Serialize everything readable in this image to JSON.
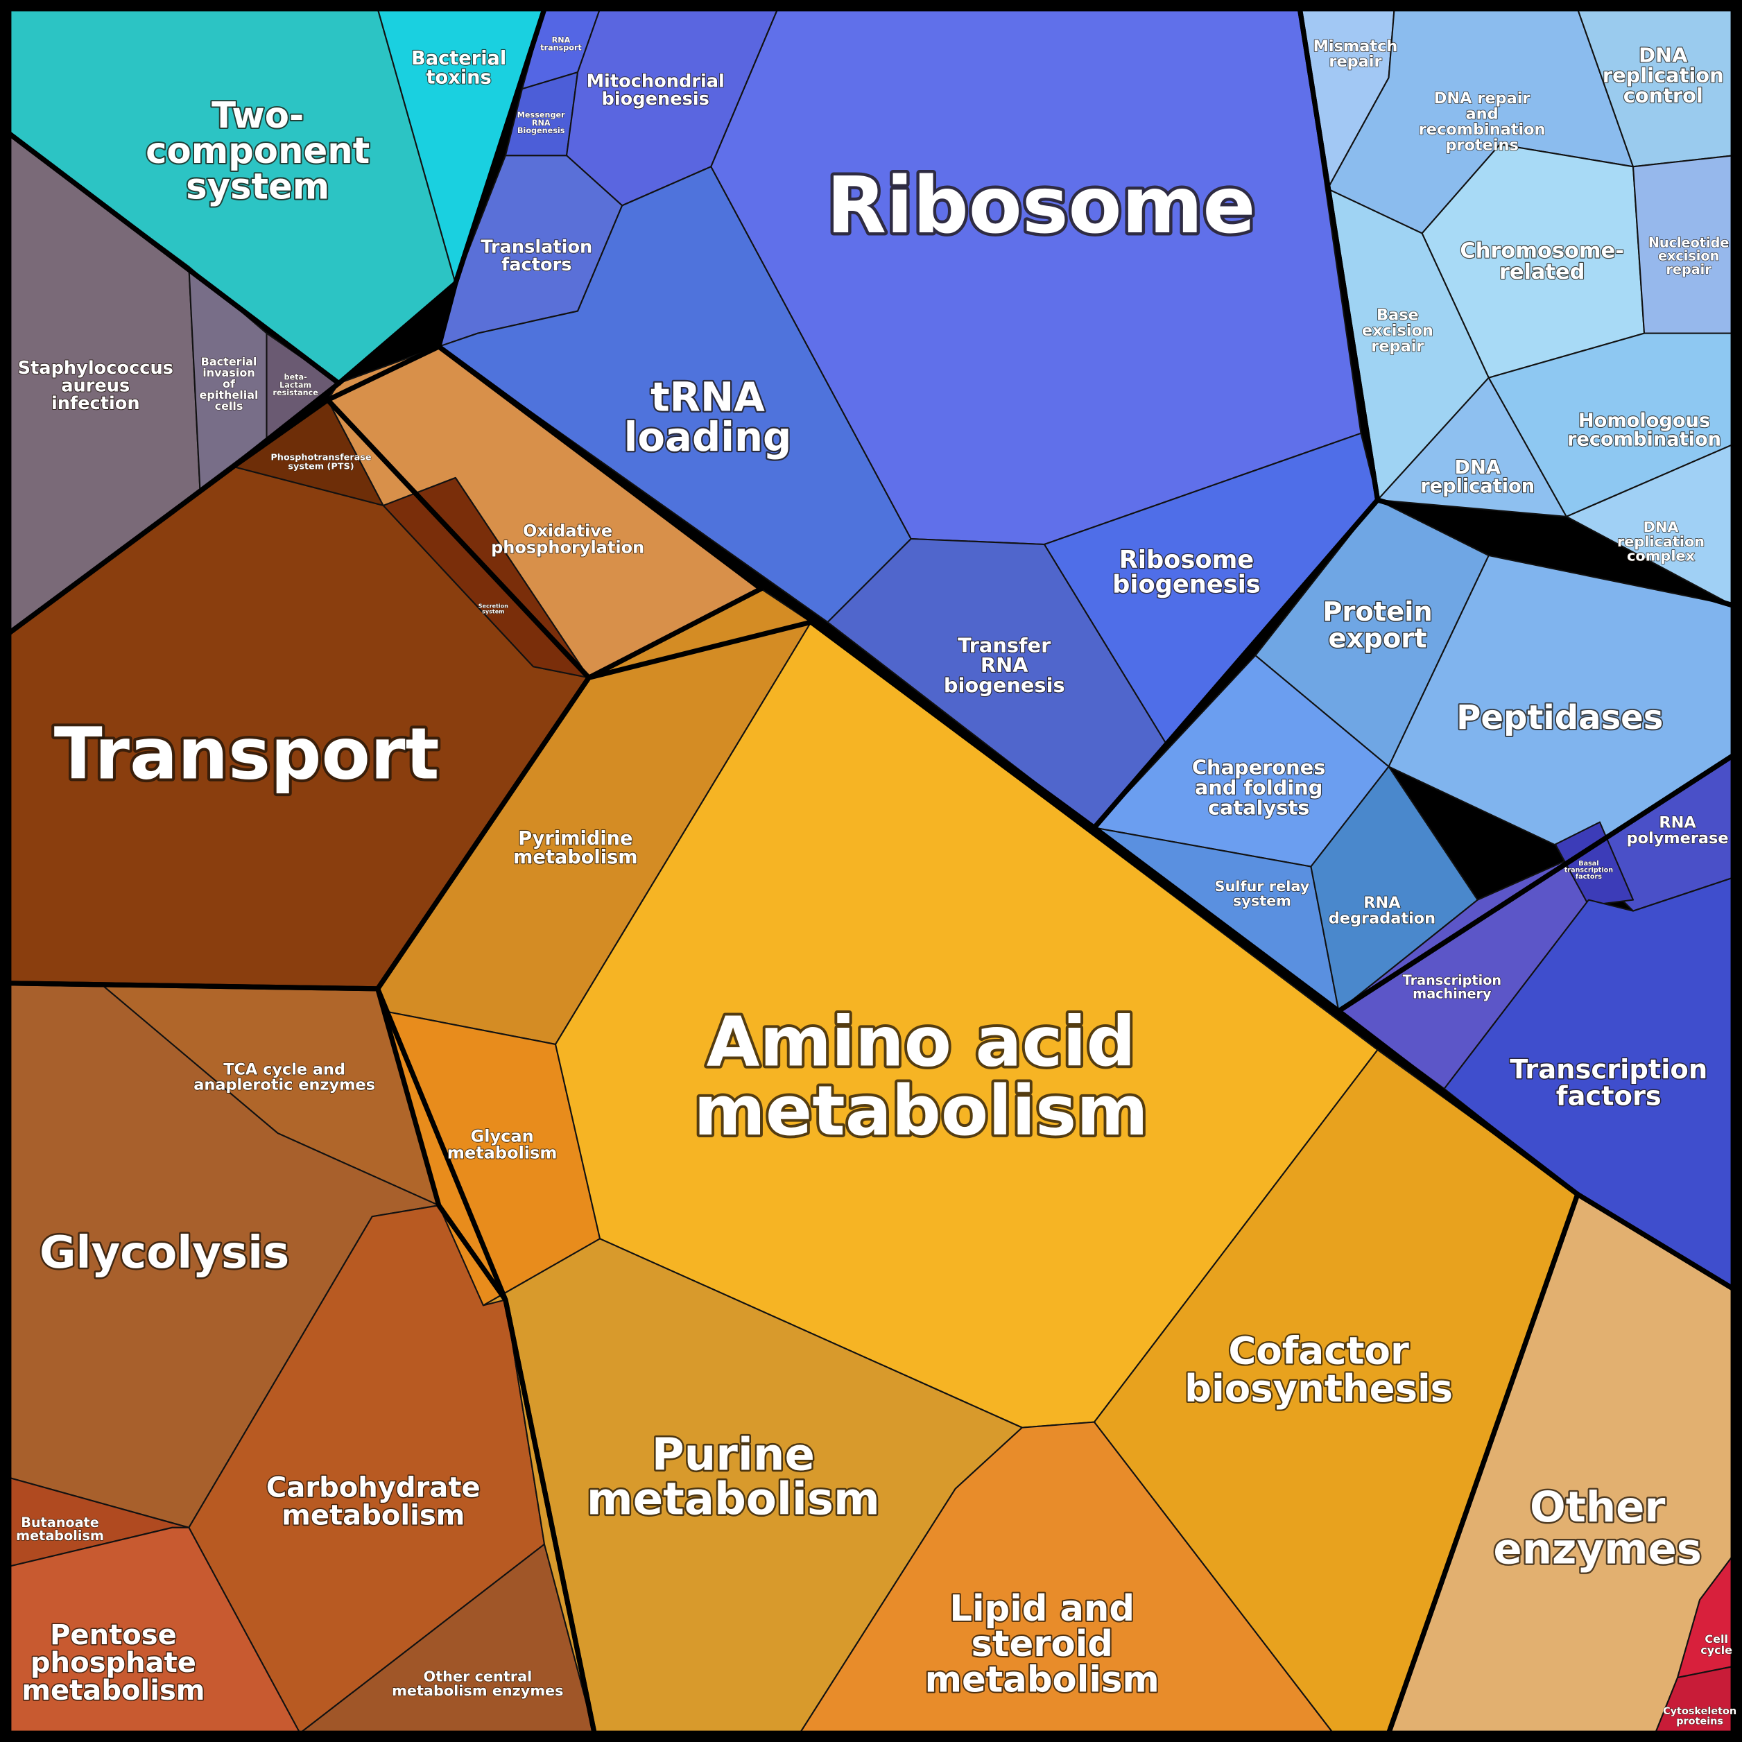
{
  "regions": [
    {
      "lines": [
        "Two-",
        "component",
        "system"
      ]
    },
    {
      "lines": [
        "Bacterial",
        "toxins"
      ]
    },
    {
      "lines": [
        "RNA",
        "transport"
      ]
    },
    {
      "lines": [
        "Messenger",
        "RNA",
        "Biogenesis"
      ]
    },
    {
      "lines": [
        "Mitochondrial",
        "biogenesis"
      ]
    },
    {
      "lines": [
        "Translation",
        "factors"
      ]
    },
    {
      "lines": [
        "Ribosome"
      ]
    },
    {
      "lines": [
        "tRNA",
        "loading"
      ]
    },
    {
      "lines": [
        "Ribosome",
        "biogenesis"
      ]
    },
    {
      "lines": [
        "Transfer",
        "RNA",
        "biogenesis"
      ]
    },
    {
      "lines": [
        "Mismatch",
        "repair"
      ]
    },
    {
      "lines": [
        "DNA repair",
        "and",
        "recombination",
        "proteins"
      ]
    },
    {
      "lines": [
        "DNA",
        "replication",
        "control"
      ]
    },
    {
      "lines": [
        "Chromosome-",
        "related"
      ]
    },
    {
      "lines": [
        "Nucleotide",
        "excision",
        "repair"
      ]
    },
    {
      "lines": [
        "Base",
        "excision",
        "repair"
      ]
    },
    {
      "lines": [
        "Homologous",
        "recombination"
      ]
    },
    {
      "lines": [
        "DNA",
        "replication"
      ]
    },
    {
      "lines": [
        "DNA",
        "replication",
        "complex"
      ]
    },
    {
      "lines": [
        "Protein",
        "export"
      ]
    },
    {
      "lines": [
        "Peptidases"
      ]
    },
    {
      "lines": [
        "Chaperones",
        "and folding",
        "catalysts"
      ]
    },
    {
      "lines": [
        "RNA",
        "polymerase"
      ]
    },
    {
      "lines": [
        "Basal",
        "transcription",
        "factors"
      ]
    },
    {
      "lines": [
        "Sulfur relay",
        "system"
      ]
    },
    {
      "lines": [
        "RNA",
        "degradation"
      ]
    },
    {
      "lines": [
        "Transcription",
        "machinery"
      ]
    },
    {
      "lines": [
        "Transcription",
        "factors"
      ]
    },
    {
      "lines": [
        "Staphylococcus",
        "aureus",
        "infection"
      ]
    },
    {
      "lines": [
        "Bacterial",
        "invasion",
        "of",
        "epithelial",
        "cells"
      ]
    },
    {
      "lines": [
        "beta-",
        "Lactam",
        "resistance"
      ]
    },
    {
      "lines": [
        "Phosphotransferase",
        "system (PTS)"
      ]
    },
    {
      "lines": [
        "Secretion",
        "system"
      ]
    },
    {
      "lines": [
        "Oxidative",
        "phosphorylation"
      ]
    },
    {
      "lines": [
        "Transport"
      ]
    },
    {
      "lines": [
        "Pyrimidine",
        "metabolism"
      ]
    },
    {
      "lines": [
        "TCA cycle and",
        "anaplerotic enzymes"
      ]
    },
    {
      "lines": [
        "Glycan",
        "metabolism"
      ]
    },
    {
      "lines": [
        "Amino acid",
        "metabolism"
      ]
    },
    {
      "lines": [
        "Glycolysis"
      ]
    },
    {
      "lines": [
        "Cofactor",
        "biosynthesis"
      ]
    },
    {
      "lines": [
        "Purine",
        "metabolism"
      ]
    },
    {
      "lines": [
        "Carbohydrate",
        "metabolism"
      ]
    },
    {
      "lines": [
        "Butanoate",
        "metabolism"
      ]
    },
    {
      "lines": [
        "Other",
        "enzymes"
      ]
    },
    {
      "lines": [
        "Lipid and",
        "steroid",
        "metabolism"
      ]
    },
    {
      "lines": [
        "Pentose",
        "phosphate",
        "metabolism"
      ]
    },
    {
      "lines": [
        "Other central",
        "metabolism enzymes"
      ]
    },
    {
      "lines": [
        "Cell",
        "cycle"
      ]
    },
    {
      "lines": [
        "Cytoskeleton",
        "proteins"
      ]
    }
  ]
}
